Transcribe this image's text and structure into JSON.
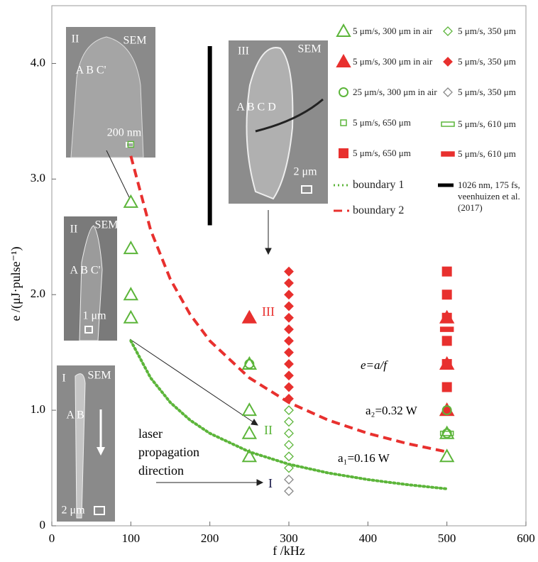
{
  "chart_data": {
    "type": "scatter",
    "x_label": "f /kHz",
    "y_label": "e /(μJ·pulse⁻¹)",
    "xlim": [
      0,
      600
    ],
    "ylim": [
      0,
      4.5
    ],
    "xticks": [
      0,
      100,
      200,
      300,
      400,
      500,
      600
    ],
    "yticks": [
      0,
      {
        "value": 1,
        "label": "1.0"
      },
      {
        "value": 2,
        "label": "2.0"
      },
      {
        "value": 3,
        "label": "3.0"
      },
      {
        "value": 4,
        "label": "4.0"
      }
    ],
    "legend_position": "upper right",
    "series": [
      {
        "name": "5 μm/s, 300 μm in air",
        "color": "#5cb53a",
        "marker": "triangle",
        "filled": false,
        "x": [
          100,
          100,
          100,
          100,
          250,
          250,
          250,
          250,
          500,
          500,
          500
        ],
        "values": [
          2.8,
          2.4,
          2.0,
          1.8,
          1.4,
          1.0,
          0.8,
          0.6,
          1.0,
          0.8,
          0.6
        ]
      },
      {
        "name": "5 μm/s, 300 μm in air",
        "color": "#e8302e",
        "marker": "triangle",
        "filled": true,
        "x": [
          250,
          500,
          500,
          500
        ],
        "values": [
          1.8,
          1.8,
          1.4,
          1.0
        ]
      },
      {
        "name": "25 μm/s, 300 μm in air",
        "color": "#5cb53a",
        "marker": "circle",
        "filled": false,
        "x": [
          250,
          500,
          500
        ],
        "values": [
          1.4,
          1.0,
          0.8
        ]
      },
      {
        "name": "5 μm/s, 650 μm",
        "color": "#5cb53a",
        "marker": "square",
        "filled": false,
        "x": [
          100
        ],
        "values": [
          3.3
        ]
      },
      {
        "name": "5 μm/s, 650 μm",
        "color": "#e8302e",
        "marker": "square",
        "filled": true,
        "x": [
          500,
          500,
          500,
          500,
          500,
          500
        ],
        "values": [
          2.2,
          2.0,
          1.8,
          1.6,
          1.4,
          1.2
        ]
      },
      {
        "name": "boundary 1",
        "color": "#5cb53a",
        "style": "dotted",
        "x": [
          100,
          125,
          150,
          175,
          200,
          250,
          300,
          350,
          400,
          450,
          500
        ],
        "values": [
          1.6,
          1.28,
          1.067,
          0.914,
          0.8,
          0.64,
          0.533,
          0.457,
          0.4,
          0.356,
          0.32
        ]
      },
      {
        "name": "boundary 2",
        "color": "#e8302e",
        "style": "dashed",
        "x": [
          100,
          125,
          150,
          175,
          200,
          250,
          300,
          350,
          400,
          450,
          500
        ],
        "values": [
          3.2,
          2.56,
          2.133,
          1.829,
          1.6,
          1.28,
          1.067,
          0.914,
          0.8,
          0.711,
          0.64
        ]
      },
      {
        "name": "5 μm/s, 350 μm",
        "color": "#5cb53a",
        "marker": "diamond",
        "filled": false,
        "x": [
          300,
          300,
          300,
          300,
          300,
          300
        ],
        "values": [
          1.0,
          0.9,
          0.8,
          0.7,
          0.6,
          0.5
        ]
      },
      {
        "name": "5 μm/s, 350 μm",
        "color": "#e8302e",
        "marker": "diamond",
        "filled": true,
        "x": [
          300,
          300,
          300,
          300,
          300,
          300,
          300,
          300,
          300,
          300,
          300,
          300
        ],
        "values": [
          2.2,
          2.1,
          2.0,
          1.9,
          1.8,
          1.7,
          1.6,
          1.5,
          1.4,
          1.3,
          1.2,
          1.1
        ]
      },
      {
        "name": "5 μm/s, 350 μm",
        "color": "#888888",
        "marker": "diamond",
        "filled": false,
        "x": [
          300,
          300
        ],
        "values": [
          0.4,
          0.3
        ]
      },
      {
        "name": "5 μm/s, 610 μm",
        "color": "#5cb53a",
        "marker": "rect",
        "filled": false,
        "x": [
          500
        ],
        "values": [
          0.8
        ]
      },
      {
        "name": "5 μm/s, 610 μm",
        "color": "#e8302e",
        "marker": "rect",
        "filled": true,
        "x": [
          500
        ],
        "values": [
          1.7
        ]
      },
      {
        "name": "1026 nm, 175 fs, veenhuizen et al. (2017)",
        "color": "#000000",
        "style": "solid",
        "x": [
          200,
          200
        ],
        "values": [
          2.6,
          4.15
        ]
      }
    ],
    "annotations": [
      {
        "text": "III",
        "color": "#e8302e"
      },
      {
        "text": "II",
        "color": "#5cb53a"
      },
      {
        "text": "I",
        "color": "#1a1a4a"
      },
      {
        "text": "e=a/f",
        "color": "#000000"
      },
      {
        "text": "a₂=0.32 W",
        "color": "#000000"
      },
      {
        "text": "a₁=0.16 W",
        "color": "#000000"
      },
      {
        "text": "laser propagation direction",
        "color": "#000000"
      }
    ],
    "insets": [
      {
        "texts": [
          "II",
          "SEM",
          "A B C'",
          "200 nm"
        ]
      },
      {
        "texts": [
          "III",
          "SEM",
          "A B C D",
          "2 μm"
        ]
      },
      {
        "texts": [
          "II",
          "SEM",
          "A B C'",
          "1 μm"
        ]
      },
      {
        "texts": [
          "I",
          "SEM",
          "A B",
          "2 μm"
        ]
      }
    ]
  }
}
